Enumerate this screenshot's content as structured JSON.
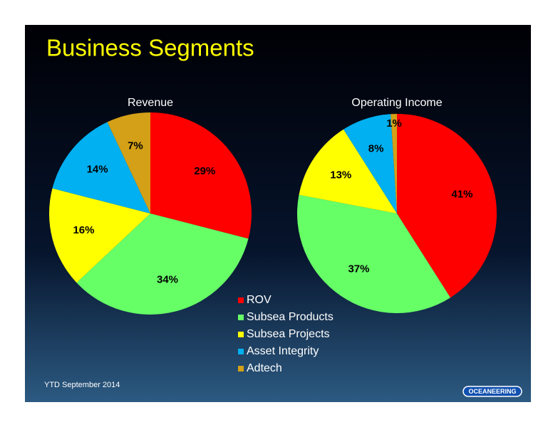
{
  "title": "Business Segments",
  "footnote": "YTD September 2014",
  "logo": "OCEANEERING",
  "chart_data": [
    {
      "type": "pie",
      "title": "Revenue",
      "categories": [
        "ROV",
        "Subsea Products",
        "Subsea Projects",
        "Asset Integrity",
        "Adtech"
      ],
      "values": [
        29,
        34,
        16,
        14,
        7
      ],
      "value_labels": [
        "29%",
        "34%",
        "16%",
        "14%",
        "7%"
      ],
      "colors": [
        "#ff0000",
        "#66ff66",
        "#ffff00",
        "#00b0f0",
        "#d4a017"
      ],
      "legend": true
    },
    {
      "type": "pie",
      "title": "Operating Income",
      "categories": [
        "ROV",
        "Subsea Products",
        "Subsea Projects",
        "Asset Integrity",
        "Adtech"
      ],
      "values": [
        41,
        37,
        13,
        8,
        1
      ],
      "value_labels": [
        "41%",
        "37%",
        "13%",
        "8%",
        "1%"
      ],
      "colors": [
        "#ff0000",
        "#66ff66",
        "#ffff00",
        "#00b0f0",
        "#d4a017"
      ],
      "legend": false
    }
  ]
}
